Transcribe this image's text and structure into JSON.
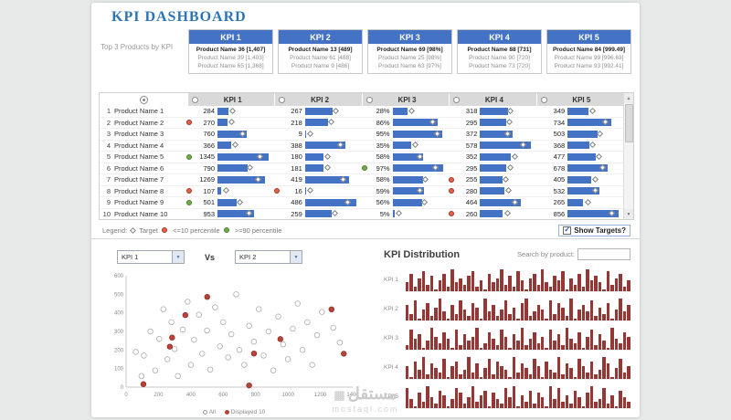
{
  "header": {
    "title": "KPI DASHBOARD"
  },
  "icons": {
    "arrow_up": "▲",
    "arrow_down": "▼",
    "chevron_down": "▼",
    "check": "✓",
    "grid": "▦"
  },
  "top3": {
    "label": "Top 3 Products by KPI",
    "cards": [
      {
        "kpi": "KPI 1",
        "lines": [
          "Product Name 36 [1,407]",
          "Product Name 39 [1,403]",
          "Product Name 65 [1,368]"
        ]
      },
      {
        "kpi": "KPI 2",
        "lines": [
          "Product Name 13 [489]",
          "Product Name 61 [488]",
          "Product Name 9 [486]"
        ]
      },
      {
        "kpi": "KPI 3",
        "lines": [
          "Product Name 69 [98%]",
          "Product Name 25 [98%]",
          "Product Name 63 [97%]"
        ]
      },
      {
        "kpi": "KPI 4",
        "lines": [
          "Product Name 88 [731]",
          "Product Name 90 [720]",
          "Product Name 73 [720]"
        ]
      },
      {
        "kpi": "KPI 5",
        "lines": [
          "Product Name 84 [999.49]",
          "Product Name 99 [996.63]",
          "Product Name 93 [992.41]"
        ]
      }
    ]
  },
  "table": {
    "columns": [
      "KPI 1",
      "KPI 2",
      "KPI 3",
      "KPI 4",
      "KPI 5"
    ],
    "rows": [
      {
        "num": "1",
        "name": "Product Name 1",
        "cells": [
          {
            "v": "284",
            "bar": 0.21,
            "t": 0.3,
            "dot": null
          },
          {
            "v": "267",
            "bar": 0.55,
            "t": 0.62,
            "dot": null
          },
          {
            "v": "28%",
            "bar": 0.29,
            "t": 0.38,
            "dot": null
          },
          {
            "v": "318",
            "bar": 0.55,
            "t": 0.6,
            "dot": null
          },
          {
            "v": "349",
            "bar": 0.41,
            "t": 0.5,
            "dot": null
          }
        ]
      },
      {
        "num": "2",
        "name": "Product Name 2",
        "cells": [
          {
            "v": "270",
            "bar": 0.2,
            "t": 0.28,
            "dot": "red"
          },
          {
            "v": "218",
            "bar": 0.45,
            "t": 0.52,
            "dot": null
          },
          {
            "v": "86%",
            "bar": 0.89,
            "t": 0.8,
            "dot": null
          },
          {
            "v": "295",
            "bar": 0.51,
            "t": 0.58,
            "dot": null
          },
          {
            "v": "734",
            "bar": 0.86,
            "t": 0.75,
            "dot": null
          }
        ]
      },
      {
        "num": "3",
        "name": "Product Name 3",
        "cells": [
          {
            "v": "760",
            "bar": 0.57,
            "t": 0.5,
            "dot": null
          },
          {
            "v": "9",
            "bar": 0.02,
            "t": 0.12,
            "dot": null
          },
          {
            "v": "95%",
            "bar": 0.98,
            "t": 0.88,
            "dot": null
          },
          {
            "v": "372",
            "bar": 0.64,
            "t": 0.55,
            "dot": null
          },
          {
            "v": "503",
            "bar": 0.59,
            "t": 0.65,
            "dot": null
          }
        ]
      },
      {
        "num": "4",
        "name": "Product Name 4",
        "cells": [
          {
            "v": "366",
            "bar": 0.27,
            "t": 0.35,
            "dot": null
          },
          {
            "v": "388",
            "bar": 0.8,
            "t": 0.7,
            "dot": null
          },
          {
            "v": "35%",
            "bar": 0.36,
            "t": 0.45,
            "dot": null
          },
          {
            "v": "578",
            "bar": 1.0,
            "t": 0.85,
            "dot": null
          },
          {
            "v": "368",
            "bar": 0.43,
            "t": 0.5,
            "dot": null
          }
        ]
      },
      {
        "num": "5",
        "name": "Product Name 5",
        "cells": [
          {
            "v": "1345",
            "bar": 1.0,
            "t": 0.85,
            "dot": "green"
          },
          {
            "v": "180",
            "bar": 0.37,
            "t": 0.45,
            "dot": null
          },
          {
            "v": "58%",
            "bar": 0.6,
            "t": 0.55,
            "dot": null
          },
          {
            "v": "352",
            "bar": 0.61,
            "t": 0.7,
            "dot": null
          },
          {
            "v": "477",
            "bar": 0.56,
            "t": 0.62,
            "dot": null
          }
        ]
      },
      {
        "num": "6",
        "name": "Product Name 6",
        "cells": [
          {
            "v": "790",
            "bar": 0.59,
            "t": 0.65,
            "dot": null
          },
          {
            "v": "181",
            "bar": 0.37,
            "t": 0.45,
            "dot": null
          },
          {
            "v": "97%",
            "bar": 1.0,
            "t": 0.85,
            "dot": "green"
          },
          {
            "v": "295",
            "bar": 0.51,
            "t": 0.6,
            "dot": null
          },
          {
            "v": "678",
            "bar": 0.79,
            "t": 0.7,
            "dot": null
          }
        ]
      },
      {
        "num": "7",
        "name": "Product Name 7",
        "cells": [
          {
            "v": "1269",
            "bar": 0.94,
            "t": 0.8,
            "dot": null
          },
          {
            "v": "419",
            "bar": 0.86,
            "t": 0.75,
            "dot": null
          },
          {
            "v": "58%",
            "bar": 0.6,
            "t": 0.66,
            "dot": null
          },
          {
            "v": "255",
            "bar": 0.44,
            "t": 0.52,
            "dot": "red"
          },
          {
            "v": "405",
            "bar": 0.47,
            "t": 0.55,
            "dot": null
          }
        ]
      },
      {
        "num": "8",
        "name": "Product Name 8",
        "cells": [
          {
            "v": "107",
            "bar": 0.08,
            "t": 0.18,
            "dot": "red"
          },
          {
            "v": "16",
            "bar": 0.03,
            "t": 0.12,
            "dot": "red"
          },
          {
            "v": "59%",
            "bar": 0.61,
            "t": 0.55,
            "dot": null
          },
          {
            "v": "280",
            "bar": 0.48,
            "t": 0.56,
            "dot": "red"
          },
          {
            "v": "532",
            "bar": 0.62,
            "t": 0.55,
            "dot": null
          }
        ]
      },
      {
        "num": "9",
        "name": "Product Name 9",
        "cells": [
          {
            "v": "501",
            "bar": 0.37,
            "t": 0.45,
            "dot": "green"
          },
          {
            "v": "486",
            "bar": 1.0,
            "t": 0.85,
            "dot": null
          },
          {
            "v": "56%",
            "bar": 0.58,
            "t": 0.64,
            "dot": null
          },
          {
            "v": "464",
            "bar": 0.8,
            "t": 0.7,
            "dot": null
          },
          {
            "v": "265",
            "bar": 0.31,
            "t": 0.4,
            "dot": null
          }
        ]
      },
      {
        "num": "10",
        "name": "Product Name 10",
        "cells": [
          {
            "v": "953",
            "bar": 0.71,
            "t": 0.62,
            "dot": null
          },
          {
            "v": "259",
            "bar": 0.53,
            "t": 0.6,
            "dot": null
          },
          {
            "v": "5%",
            "bar": 0.05,
            "t": 0.14,
            "dot": null
          },
          {
            "v": "260",
            "bar": 0.45,
            "t": 0.54,
            "dot": "red"
          },
          {
            "v": "856",
            "bar": 1.0,
            "t": 0.88,
            "dot": null
          }
        ]
      }
    ]
  },
  "legend": {
    "prefix": "Legend:",
    "target": "Target",
    "low": "<=10 percentile",
    "high": ">=90 percentile"
  },
  "show_targets": {
    "label": "Show Targets?",
    "checked": true
  },
  "compare": {
    "left": "KPI 1",
    "vs": "Vs",
    "right": "KPI 2"
  },
  "scatter": {
    "type": "scatter",
    "x_max": 1400,
    "y_max": 600,
    "x_ticks": [
      0,
      200,
      400,
      600,
      800,
      1000,
      1200,
      1400
    ],
    "y_ticks": [
      0,
      100,
      200,
      300,
      400,
      500,
      600
    ],
    "legend_all": "All",
    "legend_displayed": "Displayed 10",
    "points_all": [
      [
        60,
        190
      ],
      [
        95,
        60
      ],
      [
        110,
        170
      ],
      [
        150,
        300
      ],
      [
        180,
        90
      ],
      [
        205,
        260
      ],
      [
        230,
        420
      ],
      [
        255,
        150
      ],
      [
        280,
        350
      ],
      [
        300,
        205
      ],
      [
        320,
        60
      ],
      [
        350,
        310
      ],
      [
        380,
        460
      ],
      [
        400,
        120
      ],
      [
        420,
        255
      ],
      [
        450,
        390
      ],
      [
        470,
        180
      ],
      [
        500,
        305
      ],
      [
        520,
        95
      ],
      [
        550,
        430
      ],
      [
        580,
        220
      ],
      [
        600,
        350
      ],
      [
        630,
        160
      ],
      [
        650,
        285
      ],
      [
        680,
        500
      ],
      [
        700,
        200
      ],
      [
        730,
        120
      ],
      [
        760,
        330
      ],
      [
        790,
        245
      ],
      [
        820,
        420
      ],
      [
        850,
        170
      ],
      [
        880,
        300
      ],
      [
        910,
        90
      ],
      [
        940,
        380
      ],
      [
        970,
        230
      ],
      [
        1000,
        150
      ],
      [
        1030,
        315
      ],
      [
        1060,
        450
      ],
      [
        1090,
        200
      ],
      [
        1120,
        350
      ],
      [
        1150,
        120
      ],
      [
        1180,
        280
      ],
      [
        1210,
        405
      ],
      [
        1280,
        320
      ],
      [
        1320,
        240
      ]
    ],
    "points_displayed": [
      [
        284,
        267
      ],
      [
        270,
        218
      ],
      [
        760,
        9
      ],
      [
        366,
        388
      ],
      [
        1345,
        180
      ],
      [
        790,
        181
      ],
      [
        1269,
        419
      ],
      [
        107,
        16
      ],
      [
        501,
        486
      ],
      [
        953,
        259
      ]
    ]
  },
  "distribution": {
    "title": "KPI Distribution",
    "search_label": "Search by product:",
    "search_value": "",
    "rows": [
      {
        "label": "KPI 1",
        "values": [
          4,
          8,
          2,
          6,
          9,
          3,
          7,
          1,
          5,
          8,
          2,
          10,
          4,
          6,
          3,
          7,
          9,
          2,
          5,
          1,
          8,
          4,
          6,
          10,
          3,
          7,
          2,
          9,
          5,
          1,
          6,
          8,
          3,
          10,
          4,
          2,
          7,
          5,
          9,
          1,
          6,
          3,
          8,
          2,
          10,
          5,
          7,
          4,
          1,
          9,
          3,
          6,
          8,
          2,
          5
        ]
      },
      {
        "label": "KPI 2",
        "values": [
          7,
          3,
          9,
          1,
          5,
          8,
          2,
          6,
          10,
          4,
          1,
          7,
          3,
          9,
          5,
          2,
          8,
          6,
          1,
          10,
          4,
          7,
          2,
          5,
          9,
          3,
          6,
          1,
          8,
          10,
          2,
          4,
          7,
          5,
          1,
          9,
          3,
          8,
          6,
          2,
          10,
          1,
          5,
          7,
          4,
          9,
          2,
          6,
          3,
          8,
          1,
          5,
          10,
          4,
          7
        ]
      },
      {
        "label": "KPI 3",
        "values": [
          2,
          9,
          5,
          7,
          1,
          4,
          10,
          6,
          3,
          8,
          5,
          1,
          9,
          2,
          7,
          4,
          6,
          10,
          1,
          3,
          8,
          5,
          2,
          9,
          6,
          1,
          7,
          4,
          10,
          2,
          5,
          8,
          3,
          6,
          1,
          9,
          4,
          7,
          2,
          10,
          5,
          3,
          8,
          1,
          6,
          9,
          2,
          7,
          4,
          1,
          10,
          5,
          3,
          8,
          6
        ]
      },
      {
        "label": "KPI 4",
        "values": [
          6,
          1,
          8,
          4,
          10,
          2,
          7,
          5,
          3,
          9,
          1,
          6,
          8,
          2,
          4,
          10,
          3,
          7,
          1,
          5,
          9,
          2,
          8,
          6,
          4,
          1,
          10,
          3,
          7,
          5,
          2,
          9,
          6,
          1,
          8,
          4,
          3,
          10,
          2,
          7,
          5,
          1,
          9,
          6,
          3,
          8,
          2,
          4,
          10,
          7,
          1,
          5,
          9,
          3,
          6
        ]
      },
      {
        "label": "KPI 5",
        "values": [
          9,
          4,
          1,
          7,
          3,
          10,
          5,
          2,
          8,
          6,
          1,
          4,
          9,
          7,
          2,
          5,
          10,
          3,
          6,
          8,
          1,
          7,
          4,
          2,
          9,
          5,
          10,
          1,
          6,
          3,
          8,
          2,
          7,
          5,
          1,
          10,
          4,
          9,
          3,
          6,
          2,
          8,
          5,
          1,
          7,
          10,
          3,
          4,
          9,
          2,
          6,
          1,
          8,
          5,
          3
        ]
      }
    ]
  },
  "watermark": {
    "arabic": "مستقل",
    "latin": "mostaql.com"
  },
  "colors": {
    "accent_blue": "#4472c4",
    "title_blue": "#2e74b5",
    "hist_red": "#953735",
    "dot_red": "#e8604c",
    "dot_green": "#70ad47"
  }
}
